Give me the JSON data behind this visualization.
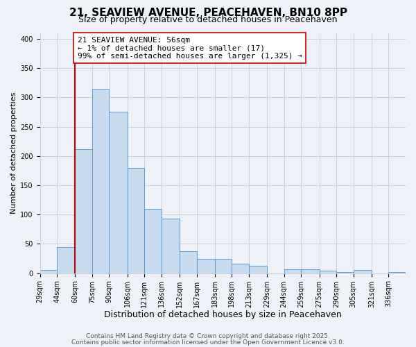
{
  "title": "21, SEAVIEW AVENUE, PEACEHAVEN, BN10 8PP",
  "subtitle": "Size of property relative to detached houses in Peacehaven",
  "xlabel": "Distribution of detached houses by size in Peacehaven",
  "ylabel": "Number of detached properties",
  "bin_labels": [
    "29sqm",
    "44sqm",
    "60sqm",
    "75sqm",
    "90sqm",
    "106sqm",
    "121sqm",
    "136sqm",
    "152sqm",
    "167sqm",
    "183sqm",
    "198sqm",
    "213sqm",
    "229sqm",
    "244sqm",
    "259sqm",
    "275sqm",
    "290sqm",
    "305sqm",
    "321sqm",
    "336sqm"
  ],
  "bin_edges": [
    29,
    44,
    60,
    75,
    90,
    106,
    121,
    136,
    152,
    167,
    183,
    198,
    213,
    229,
    244,
    259,
    275,
    290,
    305,
    321,
    336,
    351
  ],
  "counts": [
    5,
    45,
    211,
    315,
    275,
    180,
    110,
    93,
    38,
    25,
    24,
    16,
    13,
    0,
    7,
    7,
    4,
    2,
    5,
    0,
    2
  ],
  "bar_facecolor": "#c8dcf0",
  "bar_edgecolor": "#5b9bd5",
  "grid_color": "#c8d0dc",
  "background_color": "#eef2f8",
  "vline_x": 60,
  "vline_color": "#cc0000",
  "annotation_text": "21 SEAVIEW AVENUE: 56sqm\n← 1% of detached houses are smaller (17)\n99% of semi-detached houses are larger (1,325) →",
  "annotation_box_edgecolor": "#cc0000",
  "annotation_box_facecolor": "#ffffff",
  "ylim": [
    0,
    410
  ],
  "yticks": [
    0,
    50,
    100,
    150,
    200,
    250,
    300,
    350,
    400
  ],
  "footnote1": "Contains HM Land Registry data © Crown copyright and database right 2025.",
  "footnote2": "Contains public sector information licensed under the Open Government Licence v3.0.",
  "title_fontsize": 11,
  "subtitle_fontsize": 9,
  "xlabel_fontsize": 9,
  "ylabel_fontsize": 8,
  "tick_fontsize": 7,
  "annotation_fontsize": 8,
  "footnote_fontsize": 6.5
}
